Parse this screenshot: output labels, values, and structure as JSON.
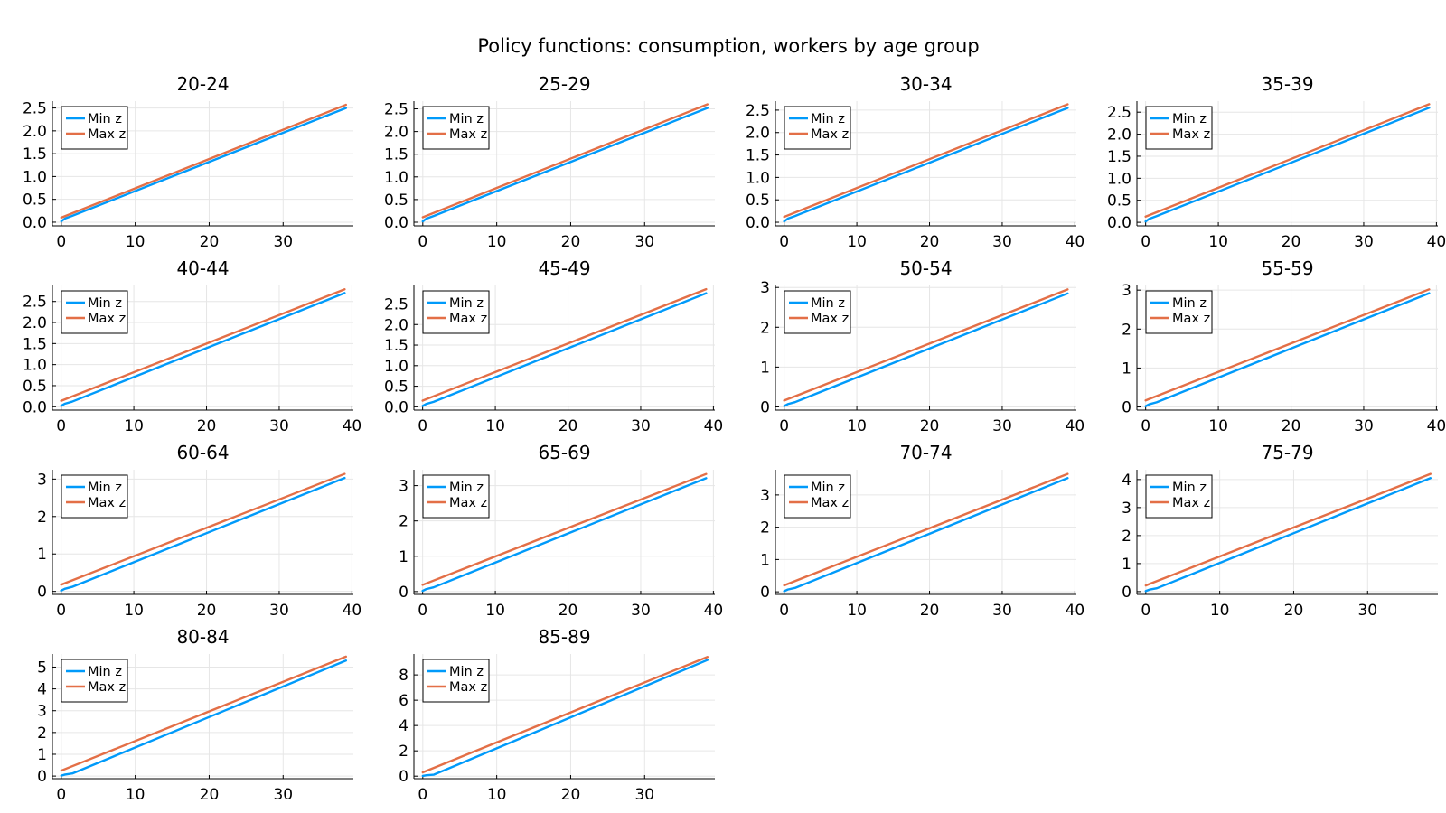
{
  "figure": {
    "title": "Policy functions: consumption, workers by age group"
  },
  "colors": {
    "min_z": "#009AFA",
    "max_z": "#E36F47",
    "grid": "#E6E6E6",
    "axis": "#000000"
  },
  "chart_data": [
    {
      "type": "line",
      "title": "20-24",
      "x": [
        0,
        38.5
      ],
      "xlim": [
        -1.2,
        39.5
      ],
      "xticks": [
        0,
        10,
        20,
        30
      ],
      "ylim": [
        -0.08,
        2.65
      ],
      "yticks": [
        0,
        0.5,
        1,
        1.5,
        2,
        2.5
      ],
      "ytick_labels": [
        "0.0",
        "0.5",
        "1.0",
        "1.5",
        "2.0",
        "2.5"
      ],
      "legend_position": "top-left",
      "grid": true,
      "series": [
        {
          "name": "Min z",
          "x": [
            0,
            0.5,
            1.5,
            38.5
          ],
          "y": [
            0.02,
            0.08,
            0.14,
            2.5
          ]
        },
        {
          "name": "Max z",
          "x": [
            0,
            38.5
          ],
          "y": [
            0.1,
            2.57
          ]
        }
      ]
    },
    {
      "type": "line",
      "title": "25-29",
      "x": [
        0,
        38.5
      ],
      "xlim": [
        -1.2,
        39.5
      ],
      "xticks": [
        0,
        10,
        20,
        30
      ],
      "ylim": [
        -0.08,
        2.67
      ],
      "yticks": [
        0,
        0.5,
        1,
        1.5,
        2,
        2.5
      ],
      "ytick_labels": [
        "0.0",
        "0.5",
        "1.0",
        "1.5",
        "2.0",
        "2.5"
      ],
      "legend_position": "top-left",
      "grid": true,
      "series": [
        {
          "name": "Min z",
          "x": [
            0,
            0.5,
            1.5,
            38.5
          ],
          "y": [
            0.02,
            0.08,
            0.14,
            2.52
          ]
        },
        {
          "name": "Max z",
          "x": [
            0,
            38.5
          ],
          "y": [
            0.11,
            2.6
          ]
        }
      ]
    },
    {
      "type": "line",
      "title": "30-34",
      "x": [
        0,
        39
      ],
      "xlim": [
        -1.2,
        40.2
      ],
      "xticks": [
        0,
        10,
        20,
        30,
        40
      ],
      "ylim": [
        -0.08,
        2.7
      ],
      "yticks": [
        0,
        0.5,
        1,
        1.5,
        2,
        2.5
      ],
      "ytick_labels": [
        "0.0",
        "0.5",
        "1.0",
        "1.5",
        "2.0",
        "2.5"
      ],
      "legend_position": "top-left",
      "grid": true,
      "series": [
        {
          "name": "Min z",
          "x": [
            0,
            0.5,
            1.5,
            39
          ],
          "y": [
            0.02,
            0.08,
            0.14,
            2.55
          ]
        },
        {
          "name": "Max z",
          "x": [
            0,
            39
          ],
          "y": [
            0.12,
            2.63
          ]
        }
      ]
    },
    {
      "type": "line",
      "title": "35-39",
      "x": [
        0,
        39
      ],
      "xlim": [
        -1.2,
        40.2
      ],
      "xticks": [
        0,
        10,
        20,
        30,
        40
      ],
      "ylim": [
        -0.08,
        2.75
      ],
      "yticks": [
        0,
        0.5,
        1,
        1.5,
        2,
        2.5
      ],
      "ytick_labels": [
        "0.0",
        "0.5",
        "1.0",
        "1.5",
        "2.0",
        "2.5"
      ],
      "legend_position": "top-left",
      "grid": true,
      "series": [
        {
          "name": "Min z",
          "x": [
            0,
            0.5,
            1.5,
            39
          ],
          "y": [
            0.02,
            0.08,
            0.14,
            2.6
          ]
        },
        {
          "name": "Max z",
          "x": [
            0,
            39
          ],
          "y": [
            0.13,
            2.68
          ]
        }
      ]
    },
    {
      "type": "line",
      "title": "40-44",
      "x": [
        0,
        39
      ],
      "xlim": [
        -1.2,
        40.2
      ],
      "xticks": [
        0,
        10,
        20,
        30,
        40
      ],
      "ylim": [
        -0.08,
        2.88
      ],
      "yticks": [
        0,
        0.5,
        1,
        1.5,
        2,
        2.5
      ],
      "ytick_labels": [
        "0.0",
        "0.5",
        "1.0",
        "1.5",
        "2.0",
        "2.5"
      ],
      "legend_position": "top-left",
      "grid": true,
      "series": [
        {
          "name": "Min z",
          "x": [
            0,
            0.5,
            1.5,
            39
          ],
          "y": [
            0.02,
            0.07,
            0.12,
            2.7
          ]
        },
        {
          "name": "Max z",
          "x": [
            0,
            39
          ],
          "y": [
            0.14,
            2.79
          ]
        }
      ]
    },
    {
      "type": "line",
      "title": "45-49",
      "x": [
        0,
        39
      ],
      "xlim": [
        -1.2,
        40.2
      ],
      "xticks": [
        0,
        10,
        20,
        30,
        40
      ],
      "ylim": [
        -0.08,
        2.95
      ],
      "yticks": [
        0,
        0.5,
        1,
        1.5,
        2,
        2.5
      ],
      "ytick_labels": [
        "0.0",
        "0.5",
        "1.0",
        "1.5",
        "2.0",
        "2.5"
      ],
      "legend_position": "top-left",
      "grid": true,
      "series": [
        {
          "name": "Min z",
          "x": [
            0,
            0.5,
            1.5,
            39
          ],
          "y": [
            0.02,
            0.07,
            0.12,
            2.76
          ]
        },
        {
          "name": "Max z",
          "x": [
            0,
            39
          ],
          "y": [
            0.15,
            2.86
          ]
        }
      ]
    },
    {
      "type": "line",
      "title": "50-54",
      "x": [
        0,
        39
      ],
      "xlim": [
        -1.2,
        40.2
      ],
      "xticks": [
        0,
        10,
        20,
        30,
        40
      ],
      "ylim": [
        -0.08,
        3.05
      ],
      "yticks": [
        0,
        1,
        2,
        3
      ],
      "ytick_labels": [
        "0",
        "1",
        "2",
        "3"
      ],
      "legend_position": "top-left",
      "grid": true,
      "series": [
        {
          "name": "Min z",
          "x": [
            0,
            0.5,
            1.5,
            39
          ],
          "y": [
            0.02,
            0.07,
            0.12,
            2.85
          ]
        },
        {
          "name": "Max z",
          "x": [
            0,
            39
          ],
          "y": [
            0.16,
            2.95
          ]
        }
      ]
    },
    {
      "type": "line",
      "title": "55-59",
      "x": [
        0,
        39
      ],
      "xlim": [
        -1.2,
        40.2
      ],
      "xticks": [
        0,
        10,
        20,
        30,
        40
      ],
      "ylim": [
        -0.08,
        3.12
      ],
      "yticks": [
        0,
        1,
        2,
        3
      ],
      "ytick_labels": [
        "0",
        "1",
        "2",
        "3"
      ],
      "legend_position": "top-left",
      "grid": true,
      "series": [
        {
          "name": "Min z",
          "x": [
            0,
            0.5,
            1.5,
            39
          ],
          "y": [
            0.02,
            0.07,
            0.12,
            2.92
          ]
        },
        {
          "name": "Max z",
          "x": [
            0,
            39
          ],
          "y": [
            0.17,
            3.02
          ]
        }
      ]
    },
    {
      "type": "line",
      "title": "60-64",
      "x": [
        0,
        39
      ],
      "xlim": [
        -1.2,
        40.2
      ],
      "xticks": [
        0,
        10,
        20,
        30,
        40
      ],
      "ylim": [
        -0.08,
        3.25
      ],
      "yticks": [
        0,
        1,
        2,
        3
      ],
      "ytick_labels": [
        "0",
        "1",
        "2",
        "3"
      ],
      "legend_position": "top-left",
      "grid": true,
      "series": [
        {
          "name": "Min z",
          "x": [
            0,
            0.5,
            1.5,
            39
          ],
          "y": [
            0.02,
            0.07,
            0.12,
            3.03
          ]
        },
        {
          "name": "Max z",
          "x": [
            0,
            39
          ],
          "y": [
            0.18,
            3.14
          ]
        }
      ]
    },
    {
      "type": "line",
      "title": "65-69",
      "x": [
        0,
        39
      ],
      "xlim": [
        -1.2,
        40.2
      ],
      "xticks": [
        0,
        10,
        20,
        30,
        40
      ],
      "ylim": [
        -0.08,
        3.45
      ],
      "yticks": [
        0,
        1,
        2,
        3
      ],
      "ytick_labels": [
        "0",
        "1",
        "2",
        "3"
      ],
      "legend_position": "top-left",
      "grid": true,
      "series": [
        {
          "name": "Min z",
          "x": [
            0,
            0.5,
            1.5,
            39
          ],
          "y": [
            0.02,
            0.07,
            0.12,
            3.21
          ]
        },
        {
          "name": "Max z",
          "x": [
            0,
            39
          ],
          "y": [
            0.19,
            3.33
          ]
        }
      ]
    },
    {
      "type": "line",
      "title": "70-74",
      "x": [
        0,
        39
      ],
      "xlim": [
        -1.2,
        40.2
      ],
      "xticks": [
        0,
        10,
        20,
        30,
        40
      ],
      "ylim": [
        -0.08,
        3.78
      ],
      "yticks": [
        0,
        1,
        2,
        3
      ],
      "ytick_labels": [
        "0",
        "1",
        "2",
        "3"
      ],
      "legend_position": "top-left",
      "grid": true,
      "series": [
        {
          "name": "Min z",
          "x": [
            0,
            0.5,
            1.5,
            39
          ],
          "y": [
            0.02,
            0.07,
            0.12,
            3.52
          ]
        },
        {
          "name": "Max z",
          "x": [
            0,
            39
          ],
          "y": [
            0.2,
            3.65
          ]
        }
      ]
    },
    {
      "type": "line",
      "title": "75-79",
      "x": [
        0,
        38.5
      ],
      "xlim": [
        -1.2,
        39.5
      ],
      "xticks": [
        0,
        10,
        20,
        30
      ],
      "ylim": [
        -0.1,
        4.35
      ],
      "yticks": [
        0,
        1,
        2,
        3,
        4
      ],
      "ytick_labels": [
        "0",
        "1",
        "2",
        "3",
        "4"
      ],
      "legend_position": "top-left",
      "grid": true,
      "series": [
        {
          "name": "Min z",
          "x": [
            0,
            0.5,
            1.5,
            38.5
          ],
          "y": [
            0.02,
            0.07,
            0.12,
            4.05
          ]
        },
        {
          "name": "Max z",
          "x": [
            0,
            38.5
          ],
          "y": [
            0.22,
            4.2
          ]
        }
      ]
    },
    {
      "type": "line",
      "title": "80-84",
      "x": [
        0,
        38.5
      ],
      "xlim": [
        -1.2,
        39.5
      ],
      "xticks": [
        0,
        10,
        20,
        30
      ],
      "ylim": [
        -0.12,
        5.6
      ],
      "yticks": [
        0,
        1,
        2,
        3,
        4,
        5
      ],
      "ytick_labels": [
        "0",
        "1",
        "2",
        "3",
        "4",
        "5"
      ],
      "legend_position": "top-left",
      "grid": true,
      "series": [
        {
          "name": "Min z",
          "x": [
            0,
            0.5,
            1.5,
            38.5
          ],
          "y": [
            0.02,
            0.07,
            0.12,
            5.3
          ]
        },
        {
          "name": "Max z",
          "x": [
            0,
            38.5
          ],
          "y": [
            0.25,
            5.48
          ]
        }
      ]
    },
    {
      "type": "line",
      "title": "85-89",
      "x": [
        0,
        38.5
      ],
      "xlim": [
        -1.2,
        39.5
      ],
      "xticks": [
        0,
        10,
        20,
        30
      ],
      "ylim": [
        -0.2,
        9.65
      ],
      "yticks": [
        0,
        2,
        4,
        6,
        8
      ],
      "ytick_labels": [
        "0",
        "2",
        "4",
        "6",
        "8"
      ],
      "legend_position": "top-left",
      "grid": true,
      "series": [
        {
          "name": "Min z",
          "x": [
            0,
            0.5,
            1.5,
            38.5
          ],
          "y": [
            0.02,
            0.07,
            0.12,
            9.18
          ]
        },
        {
          "name": "Max z",
          "x": [
            0,
            38.5
          ],
          "y": [
            0.3,
            9.42
          ]
        }
      ]
    }
  ]
}
